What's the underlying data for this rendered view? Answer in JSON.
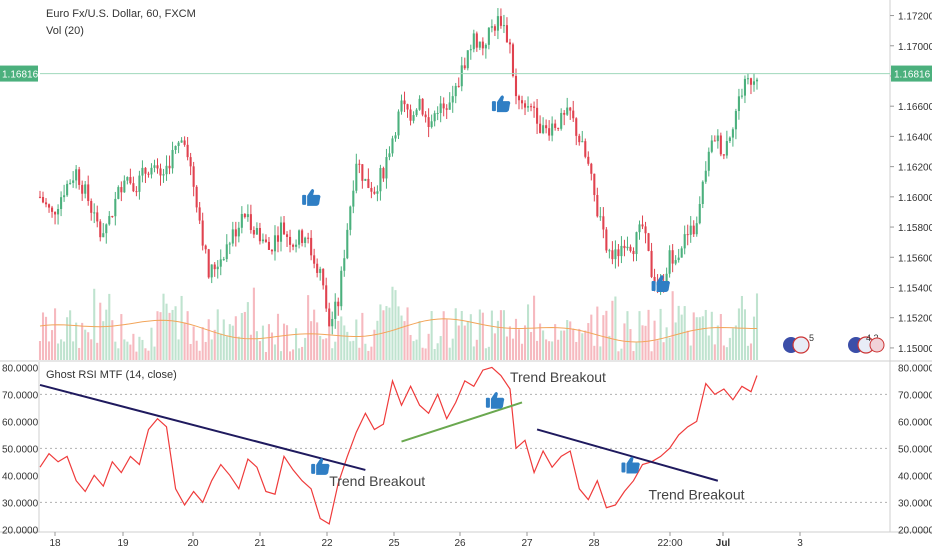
{
  "header": {
    "title": "Euro Fx/U.S. Dollar, 60, FXCM",
    "volume_label": "Vol (20)"
  },
  "colors": {
    "up": "#4bb07d",
    "down": "#e0424f",
    "vol_up": "#bfe3cf",
    "vol_down": "#f6b9bf",
    "vol_ma": "#f2a55a",
    "rsi": "#ef3b3b",
    "trend_dark": "#1f1a5e",
    "trend_green": "#6aa84f",
    "price_badge": "#4bb07d",
    "thumb": "#2f7ec4"
  },
  "chart_data": [
    {
      "type": "candlestick",
      "title": "Euro Fx/U.S. Dollar, 60, FXCM",
      "indicator": "Vol (20)",
      "y_axis_ticks": [
        "1.17200",
        "1.17000",
        "1.16800",
        "1.16600",
        "1.16400",
        "1.16200",
        "1.16000",
        "1.15800",
        "1.15600",
        "1.15400",
        "1.15200",
        "1.15000"
      ],
      "ylim": [
        1.1492,
        1.1725
      ],
      "last_price": "1.16816",
      "last_price_value": 1.16816,
      "x_ticks": [
        "18",
        "19",
        "20",
        "21",
        "22",
        "25",
        "26",
        "27",
        "28",
        "22:00",
        "Jul",
        "3"
      ],
      "close_path": [
        [
          0,
          1.16
        ],
        [
          4,
          1.1588
        ],
        [
          8,
          1.1605
        ],
        [
          12,
          1.1617
        ],
        [
          16,
          1.1598
        ],
        [
          20,
          1.1575
        ],
        [
          24,
          1.159
        ],
        [
          28,
          1.1615
        ],
        [
          32,
          1.1608
        ],
        [
          36,
          1.162
        ],
        [
          40,
          1.1612
        ],
        [
          44,
          1.1628
        ],
        [
          48,
          1.164
        ],
        [
          52,
          1.1598
        ],
        [
          56,
          1.1548
        ],
        [
          60,
          1.156
        ],
        [
          64,
          1.1575
        ],
        [
          68,
          1.1588
        ],
        [
          72,
          1.1578
        ],
        [
          76,
          1.1565
        ],
        [
          80,
          1.158
        ],
        [
          84,
          1.157
        ],
        [
          88,
          1.1575
        ],
        [
          90,
          1.1563
        ],
        [
          93,
          1.155
        ],
        [
          96,
          1.1515
        ],
        [
          99,
          1.153
        ],
        [
          102,
          1.158
        ],
        [
          105,
          1.1625
        ],
        [
          108,
          1.161
        ],
        [
          111,
          1.1605
        ],
        [
          114,
          1.1618
        ],
        [
          117,
          1.164
        ],
        [
          120,
          1.166
        ],
        [
          123,
          1.1655
        ],
        [
          126,
          1.1665
        ],
        [
          129,
          1.1645
        ],
        [
          132,
          1.166
        ],
        [
          135,
          1.1655
        ],
        [
          138,
          1.167
        ],
        [
          141,
          1.169
        ],
        [
          144,
          1.1705
        ],
        [
          147,
          1.17
        ],
        [
          150,
          1.1712
        ],
        [
          153,
          1.1718
        ],
        [
          156,
          1.17
        ],
        [
          158,
          1.1665
        ],
        [
          161,
          1.1655
        ],
        [
          164,
          1.166
        ],
        [
          167,
          1.1642
        ],
        [
          170,
          1.1648
        ],
        [
          173,
          1.165
        ],
        [
          176,
          1.1655
        ],
        [
          179,
          1.1638
        ],
        [
          182,
          1.162
        ],
        [
          185,
          1.159
        ],
        [
          188,
          1.1565
        ],
        [
          191,
          1.156
        ],
        [
          194,
          1.1572
        ],
        [
          197,
          1.1568
        ],
        [
          200,
          1.158
        ],
        [
          203,
          1.155
        ],
        [
          206,
          1.154
        ],
        [
          209,
          1.156
        ],
        [
          212,
          1.1565
        ],
        [
          215,
          1.1575
        ],
        [
          218,
          1.158
        ],
        [
          221,
          1.162
        ],
        [
          224,
          1.164
        ],
        [
          227,
          1.163
        ],
        [
          230,
          1.165
        ],
        [
          233,
          1.167
        ],
        [
          236,
          1.1678
        ],
        [
          238,
          1.1682
        ]
      ],
      "annotations": [
        {
          "type": "thumbs-up",
          "x": 90,
          "y": 1.16
        },
        {
          "type": "thumbs-up",
          "x": 153,
          "y": 1.1662
        },
        {
          "type": "thumbs-up",
          "x": 206,
          "y": 1.1543
        }
      ]
    },
    {
      "type": "line",
      "title": "Ghost RSI MTF (14, close)",
      "y_axis_ticks": [
        "80.0000",
        "70.0000",
        "60.0000",
        "50.0000",
        "40.0000",
        "30.0000",
        "20.0000"
      ],
      "ylim": [
        19,
        82
      ],
      "series": [
        {
          "values": [
            [
              0,
              43
            ],
            [
              3,
              48
            ],
            [
              6,
              45
            ],
            [
              9,
              47
            ],
            [
              12,
              38
            ],
            [
              15,
              34
            ],
            [
              18,
              40
            ],
            [
              21,
              36
            ],
            [
              24,
              45
            ],
            [
              27,
              41
            ],
            [
              30,
              47
            ],
            [
              33,
              44
            ],
            [
              36,
              57
            ],
            [
              39,
              61
            ],
            [
              42,
              58
            ],
            [
              45,
              35
            ],
            [
              48,
              29
            ],
            [
              51,
              34
            ],
            [
              54,
              30
            ],
            [
              57,
              38
            ],
            [
              60,
              44
            ],
            [
              63,
              40
            ],
            [
              66,
              35
            ],
            [
              69,
              46
            ],
            [
              72,
              43
            ],
            [
              75,
              34
            ],
            [
              78,
              33
            ],
            [
              81,
              47
            ],
            [
              84,
              42
            ],
            [
              87,
              38
            ],
            [
              90,
              35
            ],
            [
              93,
              24
            ],
            [
              96,
              22
            ],
            [
              99,
              37
            ],
            [
              102,
              47
            ],
            [
              105,
              56
            ],
            [
              108,
              63
            ],
            [
              111,
              57
            ],
            [
              114,
              59
            ],
            [
              117,
              75
            ],
            [
              120,
              66
            ],
            [
              123,
              73
            ],
            [
              126,
              66
            ],
            [
              129,
              63
            ],
            [
              132,
              70
            ],
            [
              135,
              61
            ],
            [
              138,
              67
            ],
            [
              141,
              75
            ],
            [
              144,
              73
            ],
            [
              147,
              79
            ],
            [
              150,
              80
            ],
            [
              153,
              77
            ],
            [
              156,
              72
            ],
            [
              158,
              50
            ],
            [
              161,
              53
            ],
            [
              164,
              41
            ],
            [
              167,
              49
            ],
            [
              170,
              43
            ],
            [
              173,
              47
            ],
            [
              176,
              49
            ],
            [
              179,
              35
            ],
            [
              182,
              31
            ],
            [
              185,
              38
            ],
            [
              188,
              28
            ],
            [
              191,
              29
            ],
            [
              194,
              34
            ],
            [
              197,
              38
            ],
            [
              200,
              44
            ],
            [
              203,
              45
            ],
            [
              206,
              47
            ],
            [
              209,
              50
            ],
            [
              212,
              55
            ],
            [
              215,
              58
            ],
            [
              218,
              60
            ],
            [
              221,
              74
            ],
            [
              224,
              70
            ],
            [
              227,
              72
            ],
            [
              230,
              68
            ],
            [
              233,
              73
            ],
            [
              236,
              71
            ],
            [
              238,
              77
            ]
          ]
        }
      ],
      "trendlines": [
        {
          "color": "trend_dark",
          "points": [
            [
              0,
              73.5
            ],
            [
              108,
              42
            ]
          ]
        },
        {
          "color": "trend_green",
          "points": [
            [
              120,
              52.5
            ],
            [
              160,
              67
            ]
          ]
        },
        {
          "color": "trend_dark",
          "points": [
            [
              165,
              57
            ],
            [
              225,
              38
            ]
          ]
        }
      ],
      "annotations": [
        {
          "text": "Trend Breakout",
          "x": 96,
          "y": 36
        },
        {
          "text": "Trend Breakout",
          "x": 156,
          "y": 74.5
        },
        {
          "text": "Trend Breakout",
          "x": 202,
          "y": 31
        }
      ],
      "thumbs": [
        {
          "x": 93,
          "y": 43.5
        },
        {
          "x": 151,
          "y": 68
        },
        {
          "x": 196,
          "y": 44
        }
      ]
    }
  ],
  "badges": {
    "left": "5",
    "right": "4 2"
  }
}
